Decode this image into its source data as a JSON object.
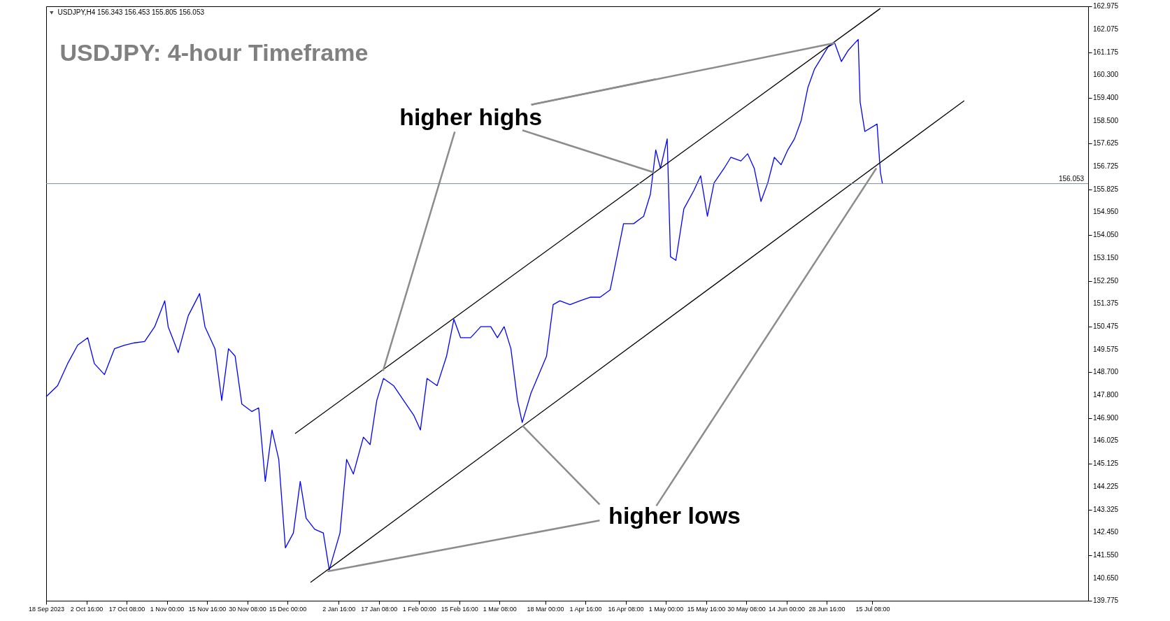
{
  "chart_data": {
    "type": "line",
    "title": "USDJPY: 4-hour Timeframe",
    "annotations": [
      "USDJPY,H4  156.343 156.453 155.805 156.053",
      {
        "text": "higher highs",
        "x": "2024-07-01T14:00",
        "y": 161.54
      },
      {
        "text": "higher lows",
        "x": "2023-12-29T15:00",
        "y": 140.92
      }
    ],
    "xlim": [
      "2023-09-18",
      "2024-10-02T01:00"
    ],
    "xticks": [
      {
        "value": "2023-09-18",
        "label": "18 Sep 2023"
      },
      {
        "value": "2023-10-02T16:00",
        "label": "2 Oct 16:00"
      },
      {
        "value": "2023-10-17T08:00",
        "label": "17 Oct 08:00"
      },
      {
        "value": "2023-11-01T00:00",
        "label": "1 Nov 00:00"
      },
      {
        "value": "2023-11-15T16:00",
        "label": "15 Nov 16:00"
      },
      {
        "value": "2023-11-30T08:00",
        "label": "30 Nov 08:00"
      },
      {
        "value": "2023-12-15T00:00",
        "label": "15 Dec 00:00"
      },
      {
        "value": "2024-01-02T16:00",
        "label": "2 Jan 16:00"
      },
      {
        "value": "2024-01-17T08:00",
        "label": "17 Jan 08:00"
      },
      {
        "value": "2024-02-01T00:00",
        "label": "1 Feb 00:00"
      },
      {
        "value": "2024-02-15T16:00",
        "label": "15 Feb 16:00"
      },
      {
        "value": "2024-03-01T08:00",
        "label": "1 Mar 08:00"
      },
      {
        "value": "2024-03-18T00:00",
        "label": "18 Mar 00:00"
      },
      {
        "value": "2024-04-01T16:00",
        "label": "1 Apr 16:00"
      },
      {
        "value": "2024-04-16T08:00",
        "label": "16 Apr 08:00"
      },
      {
        "value": "2024-05-01T00:00",
        "label": "1 May 00:00"
      },
      {
        "value": "2024-05-15T16:00",
        "label": "15 May 16:00"
      },
      {
        "value": "2024-05-30T08:00",
        "label": "30 May 08:00"
      },
      {
        "value": "2024-06-14T00:00",
        "label": "14 Jun 00:00"
      },
      {
        "value": "2024-06-28T16:00",
        "label": "28 Jun 16:00"
      },
      {
        "value": "2024-07-15T08:00",
        "label": "15 Jul 08:00"
      }
    ],
    "ylim": [
      139.775,
      162.975
    ],
    "yticks": [
      {
        "value": 139.775,
        "label": "139.775"
      },
      {
        "value": 140.65,
        "label": "140.650"
      },
      {
        "value": 141.55,
        "label": "141.550"
      },
      {
        "value": 142.45,
        "label": "142.450"
      },
      {
        "value": 143.325,
        "label": "143.325"
      },
      {
        "value": 144.225,
        "label": "144.225"
      },
      {
        "value": 145.125,
        "label": "145.125"
      },
      {
        "value": 146.025,
        "label": "146.025"
      },
      {
        "value": 146.9,
        "label": "146.900"
      },
      {
        "value": 147.8,
        "label": "147.800"
      },
      {
        "value": 148.7,
        "label": "148.700"
      },
      {
        "value": 149.575,
        "label": "149.575"
      },
      {
        "value": 150.475,
        "label": "150.475"
      },
      {
        "value": 151.375,
        "label": "151.375"
      },
      {
        "value": 152.25,
        "label": "152.250"
      },
      {
        "value": 153.15,
        "label": "153.150"
      },
      {
        "value": 154.05,
        "label": "154.050"
      },
      {
        "value": 154.95,
        "label": "154.950"
      },
      {
        "value": 155.825,
        "label": "155.825"
      },
      {
        "value": 156.725,
        "label": "156.725"
      },
      {
        "value": 157.625,
        "label": "157.625"
      },
      {
        "value": 158.5,
        "label": "158.500"
      },
      {
        "value": 159.4,
        "label": "159.400"
      },
      {
        "value": 160.3,
        "label": "160.300"
      },
      {
        "value": 161.175,
        "label": "161.175"
      },
      {
        "value": 162.075,
        "label": "162.075"
      },
      {
        "value": 162.975,
        "label": "162.975"
      }
    ],
    "ref_lines": [
      {
        "axis": "y",
        "value": 156.053,
        "label": "156.053",
        "color": "#7d8fa3"
      }
    ],
    "x": [
      "2023-09-18",
      "2023-09-22T04:00",
      "2023-09-25T20:00",
      "2023-09-29T12:00",
      "2023-10-03T04:00",
      "2023-10-05T14:00",
      "2023-10-09T06:00",
      "2023-10-12T22:00",
      "2023-10-16T14:00",
      "2023-10-20T06:00",
      "2023-10-23T22:00",
      "2023-10-27T14:00",
      "2023-10-31T06:00",
      "2023-11-01T12:00",
      "2023-11-05T04:00",
      "2023-11-08T20:00",
      "2023-11-12T23:00",
      "2023-11-14T22:00",
      "2023-11-18T14:00",
      "2023-11-21T01:00",
      "2023-11-23T12:00",
      "2023-11-25T22:00",
      "2023-11-28T09:00",
      "2023-12-02T01:00",
      "2023-12-04T12:00",
      "2023-12-06T22:00",
      "2023-12-09T09:00",
      "2023-12-11T20:00",
      "2023-12-14T06:00",
      "2023-12-17T04:00",
      "2023-12-19T16:00",
      "2023-12-21T20:00",
      "2023-12-24T23:00",
      "2023-12-28T02:00",
      "2023-12-30T06:00",
      "2024-01-03T04:00",
      "2024-01-05T14:00",
      "2024-01-08T01:00",
      "2024-01-11T17:00",
      "2024-01-14T04:00",
      "2024-01-16T14:00",
      "2024-01-19T01:00",
      "2024-01-22T17:00",
      "2024-01-26T09:00",
      "2024-01-30T01:00",
      "2024-02-01T12:00",
      "2024-02-03T22:00",
      "2024-02-07T14:00",
      "2024-02-11T01:00",
      "2024-02-13T17:00",
      "2024-02-16T04:00",
      "2024-02-19T20:00",
      "2024-02-23T12:00",
      "2024-02-27T04:00",
      "2024-02-29T14:00",
      "2024-03-03T01:00",
      "2024-03-05T12:00",
      "2024-03-07T22:00",
      "2024-03-09T15:00",
      "2024-03-12T20:00",
      "2024-03-18T12:00",
      "2024-03-20T22:00",
      "2024-03-23T09:00",
      "2024-03-27T01:00",
      "2024-03-30T17:00",
      "2024-04-03T09:00",
      "2024-04-07T01:00",
      "2024-04-10T17:00",
      "2024-04-13T04:00",
      "2024-04-15T14:00",
      "2024-04-19T06:00",
      "2024-04-22T22:00",
      "2024-04-25T09:00",
      "2024-04-27T08:00",
      "2024-04-29T01:00",
      "2024-05-01T12:00",
      "2024-05-02T17:00",
      "2024-05-04T16:00",
      "2024-05-07T14:00",
      "2024-05-11T06:00",
      "2024-05-13T17:00",
      "2024-05-16T04:00",
      "2024-05-18T14:00",
      "2024-05-22T06:00",
      "2024-05-24T17:00",
      "2024-05-28T09:00",
      "2024-05-30T20:00",
      "2024-06-02T06:00",
      "2024-06-04T17:00",
      "2024-06-07T04:00",
      "2024-06-09T14:00",
      "2024-06-12T01:00",
      "2024-06-14T12:00",
      "2024-06-16T22:00",
      "2024-06-19T09:00",
      "2024-06-21T20:00",
      "2024-06-24T06:00",
      "2024-06-26T17:00",
      "2024-06-29T04:00",
      "2024-07-01T14:00",
      "2024-07-04T01:00",
      "2024-07-06T12:00",
      "2024-07-08T22:00",
      "2024-07-10T04:00",
      "2024-07-10T21:00",
      "2024-07-12T14:00",
      "2024-07-17T01:00",
      "2024-07-18T06:00",
      "2024-07-19T00:00"
    ],
    "series": [
      {
        "color": "#0000ff",
        "values": [
          147.74,
          148.17,
          149.03,
          149.75,
          150.04,
          149.03,
          148.6,
          149.61,
          149.75,
          149.84,
          149.89,
          150.47,
          151.48,
          150.47,
          149.46,
          150.9,
          151.76,
          150.47,
          149.61,
          147.59,
          149.61,
          149.32,
          147.45,
          147.16,
          147.3,
          144.43,
          146.44,
          145.29,
          141.84,
          142.42,
          144.43,
          142.99,
          142.56,
          142.42,
          140.98,
          142.42,
          145.29,
          144.72,
          146.16,
          145.87,
          147.59,
          148.45,
          148.17,
          147.59,
          147.02,
          146.44,
          148.45,
          148.17,
          149.32,
          150.76,
          150.04,
          150.04,
          150.47,
          150.47,
          150.04,
          150.47,
          149.61,
          147.59,
          146.73,
          147.88,
          149.32,
          151.33,
          151.48,
          151.33,
          151.48,
          151.62,
          151.62,
          151.91,
          153.2,
          154.49,
          154.49,
          154.78,
          155.64,
          157.37,
          156.65,
          157.8,
          153.2,
          153.06,
          155.07,
          155.79,
          156.36,
          154.78,
          156.08,
          156.65,
          157.08,
          156.94,
          157.22,
          156.65,
          155.36,
          156.08,
          157.08,
          156.79,
          157.37,
          157.8,
          158.52,
          159.81,
          160.53,
          160.96,
          161.39,
          161.54,
          160.82,
          161.25,
          161.54,
          161.68,
          159.24,
          158.09,
          158.38,
          156.51,
          156.05
        ]
      },
      {
        "type": "line",
        "color": "#000000",
        "x": [
          "2023-12-17T19:00",
          "2024-07-18T06:00"
        ],
        "values": [
          146.3,
          162.89
        ]
      },
      {
        "type": "line",
        "color": "#000000",
        "x": [
          "2023-12-23T10:00",
          "2024-08-17T20:00"
        ],
        "values": [
          140.49,
          159.29
        ]
      }
    ]
  }
}
